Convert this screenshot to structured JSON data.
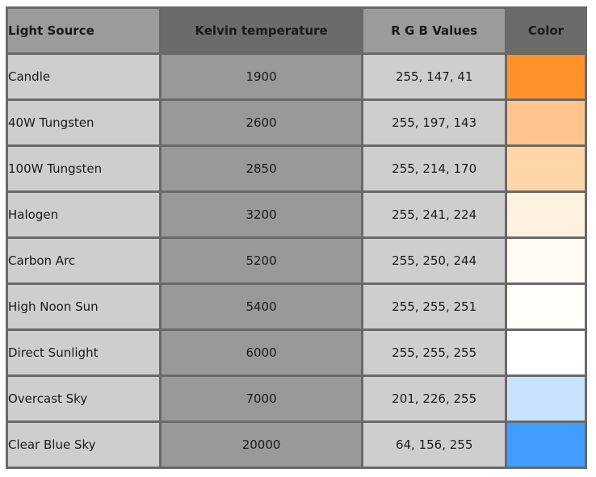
{
  "table": {
    "headers": {
      "source": "Light Source",
      "kelvin": "Kelvin temperature",
      "rgb": "R G B Values",
      "color": "Color"
    },
    "rows": [
      {
        "source": "Candle",
        "kelvin": "1900",
        "rgb": "255, 147, 41",
        "color": "#ff9329"
      },
      {
        "source": "40W Tungsten",
        "kelvin": "2600",
        "rgb": "255, 197, 143",
        "color": "#ffc58f"
      },
      {
        "source": "100W Tungsten",
        "kelvin": "2850",
        "rgb": "255, 214, 170",
        "color": "#ffd6aa"
      },
      {
        "source": "Halogen",
        "kelvin": "3200",
        "rgb": "255, 241, 224",
        "color": "#fff1e0"
      },
      {
        "source": "Carbon Arc",
        "kelvin": "5200",
        "rgb": "255, 250, 244",
        "color": "#fffaf4"
      },
      {
        "source": "High Noon Sun",
        "kelvin": "5400",
        "rgb": "255, 255, 251",
        "color": "#fffffb"
      },
      {
        "source": "Direct Sunlight",
        "kelvin": "6000",
        "rgb": "255, 255, 255",
        "color": "#ffffff"
      },
      {
        "source": "Overcast Sky",
        "kelvin": "7000",
        "rgb": "201, 226, 255",
        "color": "#c9e2ff"
      },
      {
        "source": "Clear Blue Sky",
        "kelvin": "20000",
        "rgb": "64, 156, 255",
        "color": "#409cff"
      }
    ]
  }
}
